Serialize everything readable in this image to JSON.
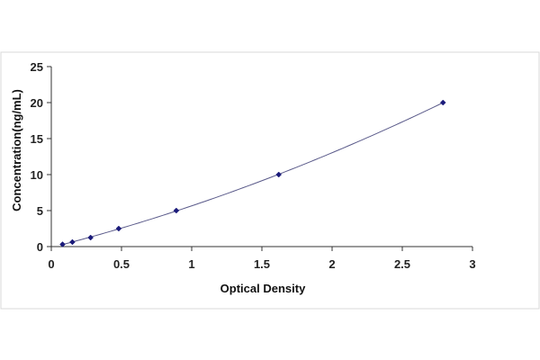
{
  "chart_data": {
    "type": "scatter",
    "title": "",
    "xlabel": "Optical Density",
    "ylabel": "Concentration(ng/mL)",
    "xlim": [
      0,
      3
    ],
    "ylim": [
      0,
      25
    ],
    "x_ticks": [
      "0",
      "0.5",
      "1",
      "1.5",
      "2",
      "2.5",
      "3"
    ],
    "y_ticks": [
      "0",
      "5",
      "10",
      "15",
      "20",
      "25"
    ],
    "grid": false,
    "legend": "none",
    "fit_line": true,
    "series": [
      {
        "x": [
          0.08,
          0.15,
          0.28,
          0.48,
          0.89,
          1.62,
          2.79
        ],
        "y": [
          0.31,
          0.63,
          1.25,
          2.5,
          5,
          10,
          20
        ]
      }
    ],
    "colors": {
      "marker": "#1a1a7a",
      "curve": "#5a5a8a",
      "axis": "#333333",
      "frame": "#d8d8d8"
    }
  }
}
